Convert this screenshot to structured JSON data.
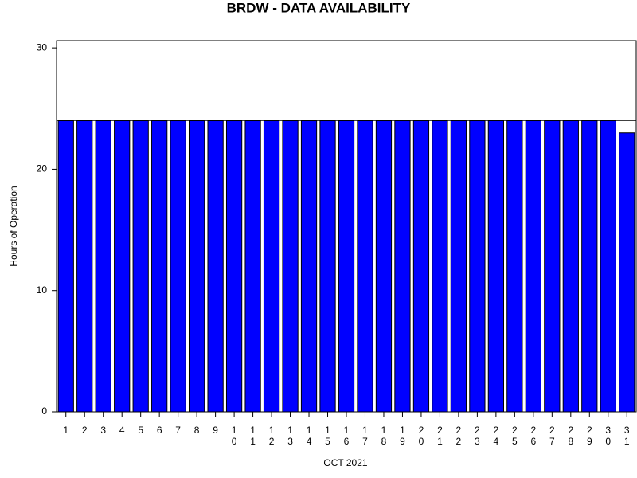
{
  "chart_data": {
    "type": "bar",
    "title": "BRDW - DATA AVAILABILITY",
    "y_label": "Hours of Operation",
    "x_label": "OCT 2021",
    "categories": [
      "1",
      "2",
      "3",
      "4",
      "5",
      "6",
      "7",
      "8",
      "9",
      "10",
      "11",
      "12",
      "13",
      "14",
      "15",
      "16",
      "17",
      "18",
      "19",
      "20",
      "21",
      "22",
      "23",
      "24",
      "25",
      "26",
      "27",
      "28",
      "29",
      "30",
      "31"
    ],
    "values": [
      24,
      24,
      24,
      24,
      24,
      24,
      24,
      24,
      24,
      24,
      24,
      24,
      24,
      24,
      24,
      24,
      24,
      24,
      24,
      24,
      24,
      24,
      24,
      24,
      24,
      24,
      24,
      24,
      24,
      24,
      23
    ],
    "color": "#0000ff",
    "reference_line": 24,
    "ylim": [
      0,
      30.6
    ],
    "yticks": [
      0,
      10,
      20,
      30
    ]
  }
}
